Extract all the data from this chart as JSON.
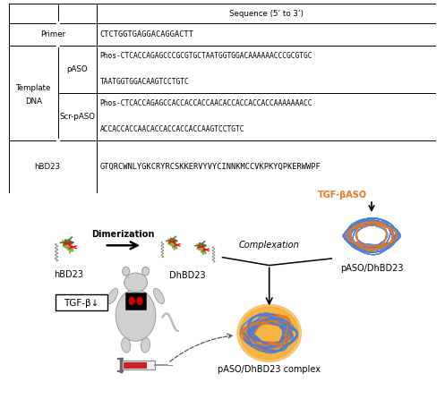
{
  "sequences": {
    "primer": "CTCTGGTGAGGACAGGACTT",
    "paso_line1": "Phos-CTCACCAGAGCCCGCGTGCTAATGGTGGACAAAAAACCCGCGTGC",
    "paso_line2": "TAATGGTGGACAAGTCCTGTC",
    "scrpaso_line1": "Phos-CTCACCAGAGCCACCACCACCAACACCACCACCACCAAAAAAACC",
    "scrpaso_line2": "ACCACCACCAACACCACCACCACCAAGTCCTGTC",
    "hbd23": "GTQRCWNLYGKCRYRCSKKERVYVYCINNKMCCVKPKYQPKERWWPF"
  },
  "diagram": {
    "tgfbaso_label": "TGF-βASO",
    "tgfbaso_color": "#E87722",
    "dimerization_label": "Dimerization",
    "complexation_label": "Complexation",
    "hbd23_label": "hBD23",
    "dhbd23_label": "DhBD23",
    "paso_dhbd23_label": "pASO/DhBD23",
    "complex_label": "pASO/DhBD23 complex",
    "tgfb_box_label": "TGF-β↓"
  },
  "bg_color": "#ffffff",
  "table_font_size": 6.2,
  "diagram_font_size": 7.0
}
